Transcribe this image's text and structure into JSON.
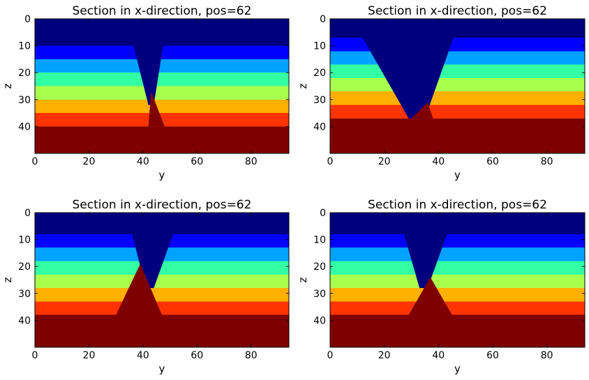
{
  "colors": {
    "layers": [
      "#00007f",
      "#0000ff",
      "#00a2ff",
      "#33ffa3",
      "#a9ff4d",
      "#ffb000",
      "#ff3400",
      "#7f0000"
    ],
    "frame": "#000000",
    "background": "#ffffff"
  },
  "chart_data": [
    {
      "type": "heatmap",
      "title": "Section in x-direction, pos=62",
      "xlabel": "y",
      "ylabel": "z",
      "xlim": [
        0,
        94
      ],
      "ylim": [
        50,
        0
      ],
      "xticks": [
        "0",
        "20",
        "40",
        "60",
        "80"
      ],
      "yticks": [
        "0",
        "10",
        "20",
        "30",
        "40"
      ],
      "grid": false,
      "layers": [
        {
          "top": 0,
          "bottom": 10
        },
        {
          "top": 10,
          "bottom": 15
        },
        {
          "top": 15,
          "bottom": 20
        },
        {
          "top": 20,
          "bottom": 25
        },
        {
          "top": 25,
          "bottom": 30
        },
        {
          "top": 30,
          "bottom": 35
        },
        {
          "top": 35,
          "bottom": 40
        },
        {
          "top": 40,
          "bottom": 50
        }
      ],
      "channel": {
        "top_left": 34,
        "top_right": 49,
        "bottom_left": 42,
        "bottom_right": 44,
        "top": 0,
        "bottom": 32
      },
      "intrusion": {
        "base_left": 42,
        "base_right": 48,
        "apex": 43,
        "top": 27,
        "bottom": 40
      }
    },
    {
      "type": "heatmap",
      "title": "Section in x-direction, pos=62",
      "xlabel": "y",
      "ylabel": "z",
      "xlim": [
        0,
        94
      ],
      "ylim": [
        50,
        0
      ],
      "xticks": [
        "0",
        "20",
        "40",
        "60",
        "80"
      ],
      "yticks": [
        "0",
        "10",
        "20",
        "30",
        "40"
      ],
      "grid": false,
      "layers": [
        {
          "top": 0,
          "bottom": 7
        },
        {
          "top": 7,
          "bottom": 12
        },
        {
          "top": 12,
          "bottom": 17
        },
        {
          "top": 17,
          "bottom": 22
        },
        {
          "top": 22,
          "bottom": 27
        },
        {
          "top": 27,
          "bottom": 32
        },
        {
          "top": 32,
          "bottom": 37
        },
        {
          "top": 37,
          "bottom": 50
        }
      ],
      "channel": {
        "top_left": 8,
        "top_right": 48,
        "bottom_left": 29,
        "bottom_right": 35,
        "top": 0,
        "bottom": 37
      },
      "intrusion": {
        "base_left": 30,
        "base_right": 38,
        "apex": 36,
        "top": 31,
        "bottom": 37
      }
    },
    {
      "type": "heatmap",
      "title": "Section in x-direction, pos=62",
      "xlabel": "y",
      "ylabel": "z",
      "xlim": [
        0,
        94
      ],
      "ylim": [
        50,
        0
      ],
      "xticks": [
        "0",
        "20",
        "40",
        "60",
        "80"
      ],
      "yticks": [
        "0",
        "10",
        "20",
        "30",
        "40"
      ],
      "grid": false,
      "layers": [
        {
          "top": 0,
          "bottom": 8
        },
        {
          "top": 8,
          "bottom": 13
        },
        {
          "top": 13,
          "bottom": 18
        },
        {
          "top": 18,
          "bottom": 23
        },
        {
          "top": 23,
          "bottom": 28
        },
        {
          "top": 28,
          "bottom": 33
        },
        {
          "top": 33,
          "bottom": 38
        },
        {
          "top": 38,
          "bottom": 50
        }
      ],
      "channel": {
        "top_left": 34,
        "top_right": 54,
        "bottom_left": 41,
        "bottom_right": 44,
        "top": 0,
        "bottom": 28
      },
      "intrusion": {
        "base_left": 30,
        "base_right": 47,
        "apex": 39,
        "top": 19,
        "bottom": 38
      }
    },
    {
      "type": "heatmap",
      "title": "Section in x-direction, pos=62",
      "xlabel": "y",
      "ylabel": "z",
      "xlim": [
        0,
        94
      ],
      "ylim": [
        50,
        0
      ],
      "xticks": [
        "0",
        "20",
        "40",
        "60",
        "80"
      ],
      "yticks": [
        "0",
        "10",
        "20",
        "30",
        "40"
      ],
      "grid": false,
      "layers": [
        {
          "top": 0,
          "bottom": 8
        },
        {
          "top": 8,
          "bottom": 13
        },
        {
          "top": 13,
          "bottom": 18
        },
        {
          "top": 18,
          "bottom": 23
        },
        {
          "top": 23,
          "bottom": 28
        },
        {
          "top": 28,
          "bottom": 33
        },
        {
          "top": 33,
          "bottom": 38
        },
        {
          "top": 38,
          "bottom": 50
        }
      ],
      "channel": {
        "top_left": 25,
        "top_right": 46,
        "bottom_left": 33,
        "bottom_right": 36,
        "top": 0,
        "bottom": 28
      },
      "intrusion": {
        "base_left": 29,
        "base_right": 45,
        "apex": 37,
        "top": 24,
        "bottom": 38
      }
    }
  ]
}
